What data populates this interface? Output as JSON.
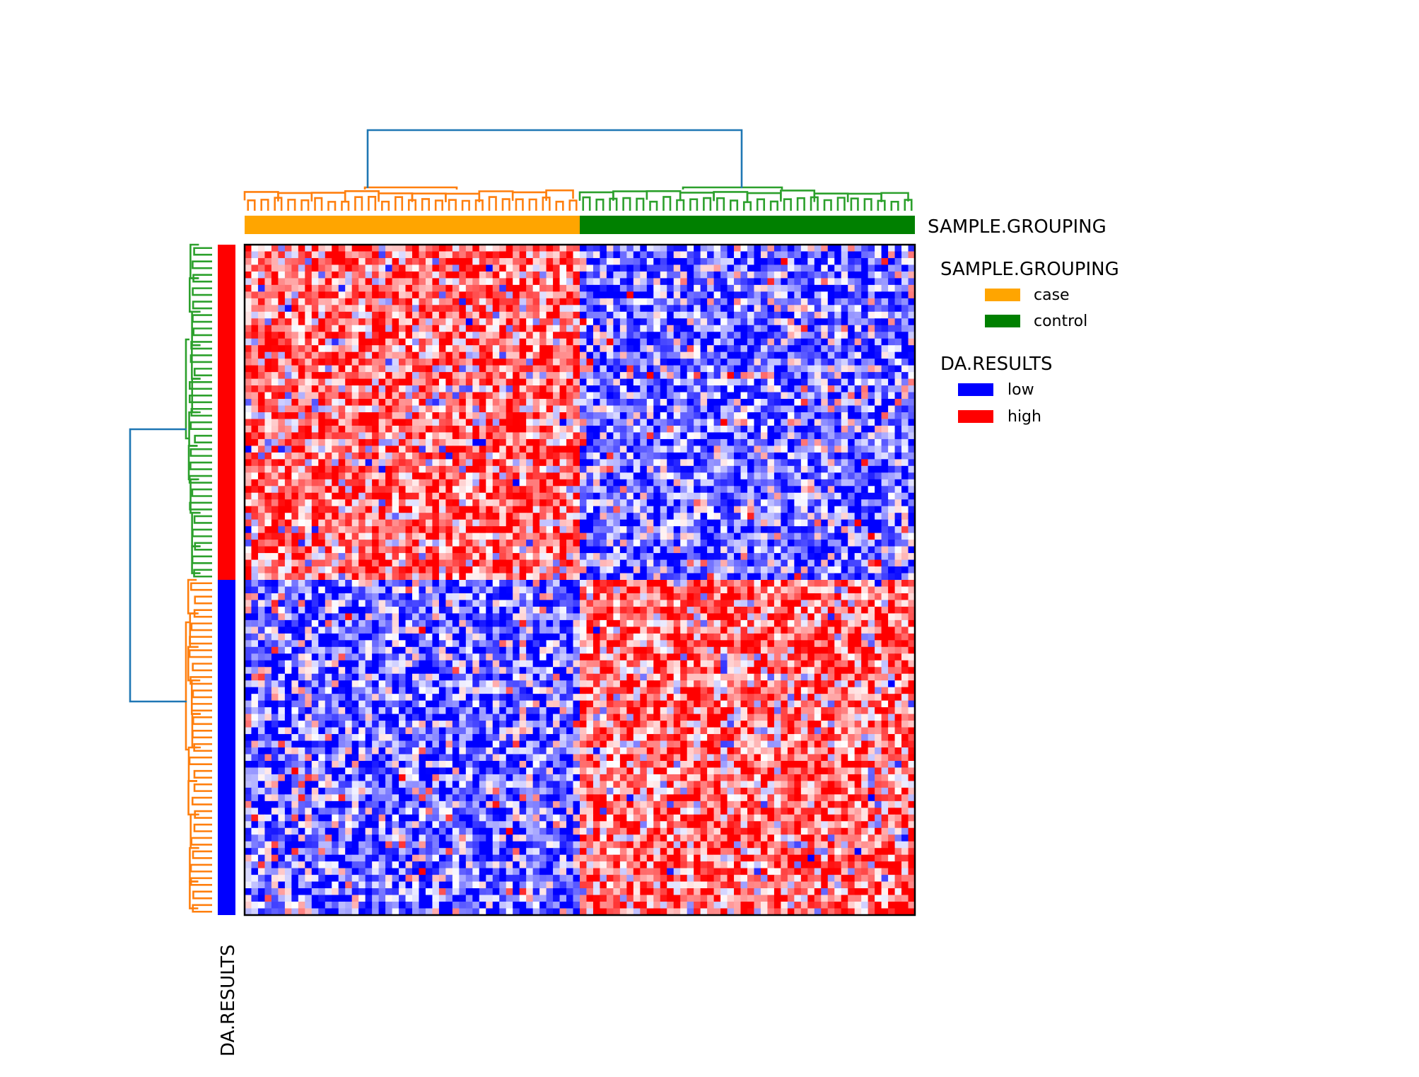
{
  "chart_data": {
    "type": "heatmap",
    "title": "",
    "n_rows": 100,
    "n_cols": 100,
    "rows_per_group": 50,
    "cols_per_group": 50,
    "col_annotation": {
      "name": "SAMPLE.GROUPING",
      "groups": [
        {
          "label": "case",
          "count": 50,
          "color": "#FFA500"
        },
        {
          "label": "control",
          "count": 50,
          "color": "#008000"
        }
      ]
    },
    "row_annotation": {
      "name": "DA.RESULTS",
      "groups": [
        {
          "label": "high",
          "count": 50,
          "color": "#FF0000"
        },
        {
          "label": "low",
          "count": 50,
          "color": "#0000FF"
        }
      ]
    },
    "legend": {
      "position": "right",
      "sections": [
        {
          "title": "SAMPLE.GROUPING",
          "items": [
            {
              "label": "case",
              "color": "#FFA500"
            },
            {
              "label": "control",
              "color": "#008000"
            }
          ]
        },
        {
          "title": "DA.RESULTS",
          "items": [
            {
              "label": "low",
              "color": "#0000FF"
            },
            {
              "label": "high",
              "color": "#FF0000"
            }
          ]
        }
      ]
    },
    "block_pattern": [
      {
        "row_group": "high",
        "col_group": "case",
        "tendency": "high"
      },
      {
        "row_group": "high",
        "col_group": "control",
        "tendency": "low"
      },
      {
        "row_group": "low",
        "col_group": "case",
        "tendency": "low"
      },
      {
        "row_group": "low",
        "col_group": "control",
        "tendency": "high"
      }
    ],
    "colormap": {
      "low": "#0000FF",
      "mid": "#FFFFFF",
      "high": "#FF0000"
    },
    "dendrogram_colors": {
      "col_cluster_case": "#FF7F0E",
      "col_cluster_control": "#2CA02C",
      "row_cluster_high": "#2CA02C",
      "row_cluster_low": "#FF7F0E",
      "link": "#1F77B4"
    }
  }
}
